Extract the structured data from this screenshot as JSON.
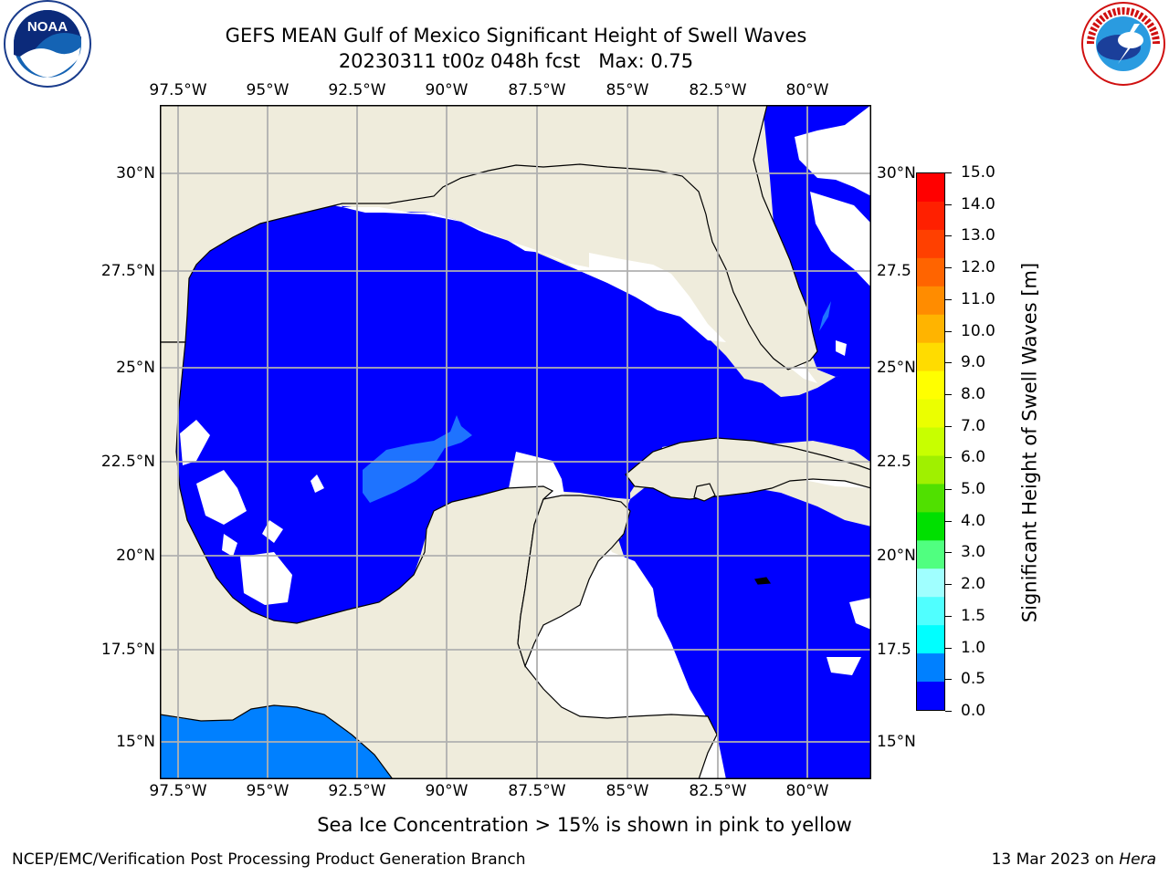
{
  "title_line1": "GEFS MEAN Gulf of Mexico Significant Height of Swell Waves",
  "title_line2": "20230311 t00z 048h fcst   Max: 0.75",
  "logos": {
    "noaa_text": "NOAA",
    "noaa_ring": "NATIONAL OCEANIC AND ATMOSPHERIC ADMINISTRATION · U.S. DEPARTMENT OF COMMERCE",
    "nws_ring": "NATIONAL WEATHER SERVICE"
  },
  "map": {
    "lon_ticks": [
      "97.5°W",
      "95°W",
      "92.5°W",
      "90°W",
      "87.5°W",
      "85°W",
      "82.5°W",
      "80°W"
    ],
    "lat_ticks_left": [
      "30°N",
      "27.5°N",
      "25°N",
      "22.5°N",
      "20°N",
      "17.5°N",
      "15°N"
    ],
    "lat_ticks_right": [
      "30°N",
      "27.5",
      "25°N",
      "22.5",
      "20°N",
      "17.5",
      "15°N"
    ],
    "colors": {
      "land": "#efecdc",
      "swell_0_05": "#0000ff",
      "swell_05_10": "#0080ff",
      "nodata": "#ffffff",
      "grid": "#b0b0b0"
    }
  },
  "colorbar": {
    "title": "Significant Height of Swell Waves [m]",
    "labels": [
      "15.0",
      "14.0",
      "13.0",
      "12.0",
      "11.0",
      "10.0",
      "9.0",
      "8.0",
      "7.0",
      "6.0",
      "5.0",
      "4.0",
      "3.0",
      "2.0",
      "1.5",
      "1.0",
      "0.5",
      "0.0"
    ],
    "colors": [
      "#ff0000",
      "#ff2000",
      "#ff4000",
      "#ff6400",
      "#ff8c00",
      "#ffb400",
      "#ffdc00",
      "#ffff00",
      "#ebff00",
      "#c8ff00",
      "#a0f000",
      "#50e000",
      "#00e000",
      "#50ff80",
      "#a0ffff",
      "#50ffff",
      "#00ffff",
      "#0080ff",
      "#0000ff"
    ]
  },
  "note": "Sea Ice Concentration > 15% is shown in pink to yellow",
  "footer_left": "NCEP/EMC/Verification Post Processing Product Generation Branch",
  "footer_right_date": "13 Mar 2023 on ",
  "footer_right_host": "Hera"
}
